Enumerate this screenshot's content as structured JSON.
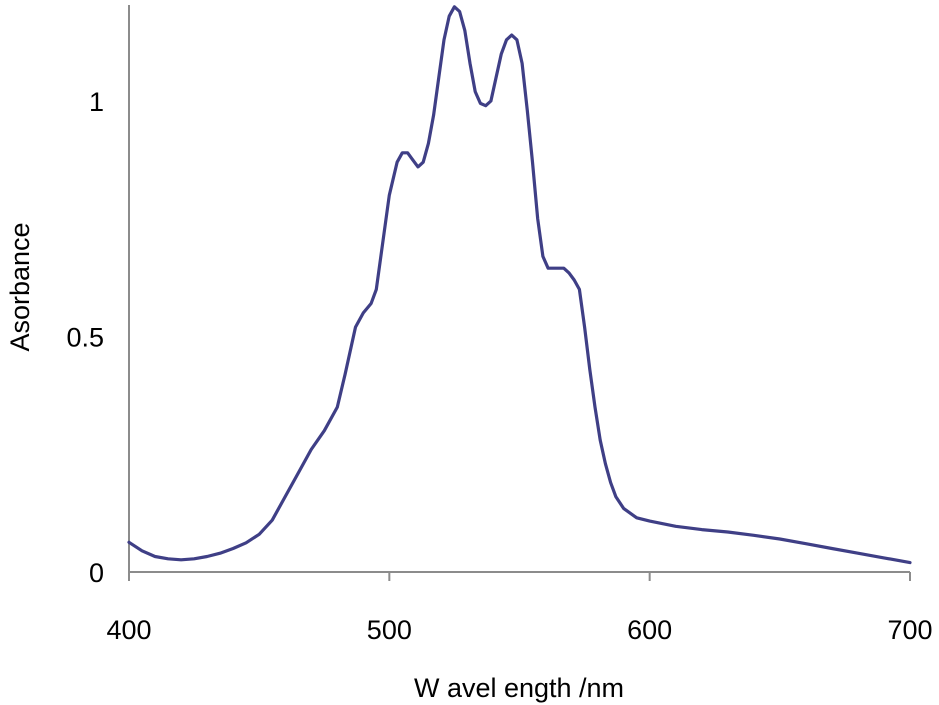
{
  "chart_data": {
    "type": "line",
    "title": "",
    "xlabel": "W avel ength  /nm",
    "ylabel": "Asorbance",
    "xlim": [
      400,
      700
    ],
    "ylim": [
      0,
      1.2
    ],
    "x_ticks": [
      400,
      500,
      600,
      700
    ],
    "x_tick_labels": [
      "400",
      "500",
      "600",
      "700"
    ],
    "y_ticks": [
      0,
      0.5,
      1
    ],
    "y_tick_labels": [
      "0",
      "0.5",
      "1"
    ],
    "grid": false,
    "legend": "none",
    "colors": {
      "series": "#3f3f86",
      "axis": "#8c8c8c"
    },
    "series": [
      {
        "x": [
          400,
          405,
          410,
          415,
          420,
          425,
          430,
          435,
          440,
          445,
          450,
          455,
          460,
          465,
          470,
          475,
          480,
          483,
          487,
          490,
          493,
          495,
          497,
          500,
          503,
          505,
          507,
          509,
          511,
          513,
          515,
          517,
          519,
          521,
          523,
          525,
          527,
          529,
          531,
          533,
          535,
          537,
          539,
          541,
          543,
          545,
          547,
          549,
          551,
          553,
          555,
          557,
          559,
          561,
          563,
          565,
          567,
          569,
          571,
          573,
          575,
          577,
          579,
          581,
          583,
          585,
          587,
          590,
          595,
          600,
          610,
          620,
          630,
          640,
          650,
          660,
          670,
          680,
          690,
          700
        ],
        "y": [
          0.063,
          0.045,
          0.033,
          0.028,
          0.026,
          0.028,
          0.033,
          0.04,
          0.05,
          0.062,
          0.08,
          0.11,
          0.16,
          0.21,
          0.26,
          0.3,
          0.35,
          0.42,
          0.52,
          0.55,
          0.57,
          0.6,
          0.68,
          0.8,
          0.87,
          0.89,
          0.89,
          0.875,
          0.86,
          0.87,
          0.91,
          0.97,
          1.05,
          1.13,
          1.18,
          1.2,
          1.19,
          1.15,
          1.08,
          1.02,
          0.995,
          0.99,
          1.0,
          1.05,
          1.1,
          1.13,
          1.14,
          1.13,
          1.08,
          0.98,
          0.87,
          0.75,
          0.67,
          0.645,
          0.645,
          0.645,
          0.645,
          0.635,
          0.62,
          0.6,
          0.52,
          0.43,
          0.35,
          0.28,
          0.23,
          0.19,
          0.16,
          0.135,
          0.115,
          0.108,
          0.097,
          0.09,
          0.085,
          0.078,
          0.07,
          0.06,
          0.05,
          0.04,
          0.03,
          0.02
        ]
      }
    ]
  }
}
